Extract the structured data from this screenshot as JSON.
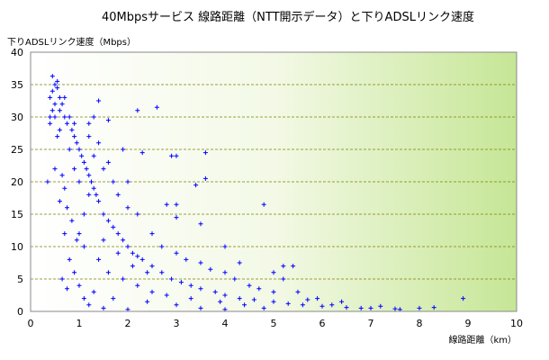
{
  "chart_data": {
    "type": "scatter",
    "title": "40Mbpsサービス 線路距離（NTT開示データ）と下りADSLリンク速度",
    "xlabel": "線路距離（km）",
    "ylabel": "下りADSLリンク速度（Mbps）",
    "xlim": [
      0,
      10
    ],
    "ylim": [
      0,
      40
    ],
    "x_ticks": [
      "0",
      "1",
      "2",
      "3",
      "4",
      "5",
      "6",
      "7",
      "8",
      "9",
      "10"
    ],
    "y_ticks": [
      "0",
      "5",
      "10",
      "15",
      "20",
      "25",
      "30",
      "35",
      "40"
    ],
    "grid": "horizontal dashed",
    "legend": "none",
    "marker": "+",
    "colors": {
      "points": "#0000ff",
      "grid": "#808000",
      "background_left": "#ffffff",
      "background_right": "#c8e89a"
    },
    "series": [
      {
        "points": [
          [
            0.4,
            33
          ],
          [
            0.45,
            34
          ],
          [
            0.5,
            35
          ],
          [
            0.5,
            32
          ],
          [
            0.55,
            34.5
          ],
          [
            0.6,
            33
          ],
          [
            0.6,
            31
          ],
          [
            0.65,
            32
          ],
          [
            0.7,
            30
          ],
          [
            0.7,
            33
          ],
          [
            0.75,
            29
          ],
          [
            0.8,
            30
          ],
          [
            0.85,
            28
          ],
          [
            0.9,
            27
          ],
          [
            0.95,
            26
          ],
          [
            1.0,
            25
          ],
          [
            1.05,
            24
          ],
          [
            1.1,
            23
          ],
          [
            1.15,
            22
          ],
          [
            1.2,
            21
          ],
          [
            1.25,
            20
          ],
          [
            1.3,
            19
          ],
          [
            1.35,
            18
          ],
          [
            1.4,
            17
          ],
          [
            1.5,
            15
          ],
          [
            1.6,
            14
          ],
          [
            1.7,
            13
          ],
          [
            1.8,
            12
          ],
          [
            1.9,
            11
          ],
          [
            2.0,
            10
          ],
          [
            2.1,
            9
          ],
          [
            2.2,
            8.5
          ],
          [
            2.3,
            8
          ],
          [
            2.5,
            7
          ],
          [
            2.7,
            6
          ],
          [
            2.9,
            5
          ],
          [
            3.1,
            4.5
          ],
          [
            3.3,
            4
          ],
          [
            3.5,
            3.5
          ],
          [
            3.8,
            3
          ],
          [
            4.0,
            2.5
          ],
          [
            4.3,
            2
          ],
          [
            4.6,
            1.8
          ],
          [
            5.0,
            1.5
          ],
          [
            5.3,
            1.2
          ],
          [
            5.6,
            1
          ],
          [
            6.0,
            0.8
          ],
          [
            6.5,
            0.6
          ],
          [
            7.0,
            0.5
          ],
          [
            7.5,
            0.4
          ],
          [
            0.45,
            36.3
          ],
          [
            0.55,
            35.5
          ],
          [
            1.2,
            29
          ],
          [
            1.3,
            30
          ],
          [
            1.4,
            32.5
          ],
          [
            1.6,
            29.5
          ],
          [
            2.2,
            31
          ],
          [
            2.6,
            31.5
          ],
          [
            1.9,
            25
          ],
          [
            2.3,
            24.5
          ],
          [
            2.9,
            24
          ],
          [
            3.0,
            24
          ],
          [
            3.6,
            24.5
          ],
          [
            3.6,
            20.5
          ],
          [
            3.4,
            19.5
          ],
          [
            2.8,
            16.5
          ],
          [
            3.0,
            16.5
          ],
          [
            4.8,
            16.5
          ],
          [
            3.0,
            14.5
          ],
          [
            3.5,
            13.5
          ],
          [
            0.35,
            20
          ],
          [
            0.4,
            30
          ],
          [
            0.5,
            22
          ],
          [
            0.6,
            17
          ],
          [
            0.7,
            12
          ],
          [
            0.8,
            8
          ],
          [
            0.9,
            6
          ],
          [
            1.0,
            4
          ],
          [
            0.65,
            5
          ],
          [
            0.75,
            3.5
          ],
          [
            1.1,
            2
          ],
          [
            1.2,
            1
          ],
          [
            1.5,
            0.5
          ],
          [
            2.0,
            0.3
          ],
          [
            1.3,
            3
          ],
          [
            1.7,
            2
          ],
          [
            2.4,
            1.5
          ],
          [
            3.0,
            1
          ],
          [
            3.5,
            0.5
          ],
          [
            4.0,
            0.3
          ],
          [
            2.0,
            16
          ],
          [
            2.2,
            15
          ],
          [
            2.5,
            12
          ],
          [
            2.7,
            10
          ],
          [
            3.0,
            9
          ],
          [
            3.2,
            8
          ],
          [
            3.5,
            7.5
          ],
          [
            3.7,
            6.5
          ],
          [
            4.0,
            6
          ],
          [
            4.2,
            5
          ],
          [
            4.5,
            4
          ],
          [
            4.7,
            3.5
          ],
          [
            5.0,
            3
          ],
          [
            5.2,
            7
          ],
          [
            5.4,
            7
          ],
          [
            5.2,
            5
          ],
          [
            5.5,
            3
          ],
          [
            5.0,
            6
          ],
          [
            4.3,
            7.5
          ],
          [
            4.0,
            10
          ],
          [
            1.0,
            12
          ],
          [
            1.1,
            15
          ],
          [
            1.2,
            18
          ],
          [
            1.0,
            20
          ],
          [
            0.9,
            22
          ],
          [
            0.8,
            25
          ],
          [
            1.3,
            24
          ],
          [
            1.5,
            22
          ],
          [
            1.7,
            20
          ],
          [
            1.8,
            18
          ],
          [
            2.0,
            20
          ],
          [
            1.6,
            23
          ],
          [
            1.4,
            26
          ],
          [
            1.2,
            27
          ],
          [
            0.9,
            29
          ],
          [
            0.6,
            28
          ],
          [
            0.5,
            30
          ],
          [
            0.45,
            31
          ],
          [
            0.4,
            29
          ],
          [
            0.55,
            27
          ],
          [
            6.2,
            1
          ],
          [
            6.8,
            0.5
          ],
          [
            7.2,
            0.8
          ],
          [
            7.6,
            0.3
          ],
          [
            8.0,
            0.5
          ],
          [
            8.3,
            0.6
          ],
          [
            8.9,
            2
          ],
          [
            6.4,
            1.5
          ],
          [
            5.9,
            2
          ],
          [
            5.7,
            1.8
          ],
          [
            4.8,
            0.5
          ],
          [
            4.4,
            1
          ],
          [
            3.9,
            1.5
          ],
          [
            3.3,
            2
          ],
          [
            2.8,
            2.5
          ],
          [
            2.5,
            3
          ],
          [
            2.2,
            4
          ],
          [
            1.9,
            5
          ],
          [
            1.6,
            6
          ],
          [
            1.4,
            8
          ],
          [
            1.1,
            10
          ],
          [
            0.95,
            11
          ],
          [
            0.85,
            14
          ],
          [
            0.75,
            16
          ],
          [
            0.7,
            19
          ],
          [
            0.65,
            21
          ],
          [
            1.5,
            11
          ],
          [
            1.8,
            9
          ],
          [
            2.1,
            7
          ],
          [
            2.4,
            6
          ]
        ]
      }
    ]
  }
}
